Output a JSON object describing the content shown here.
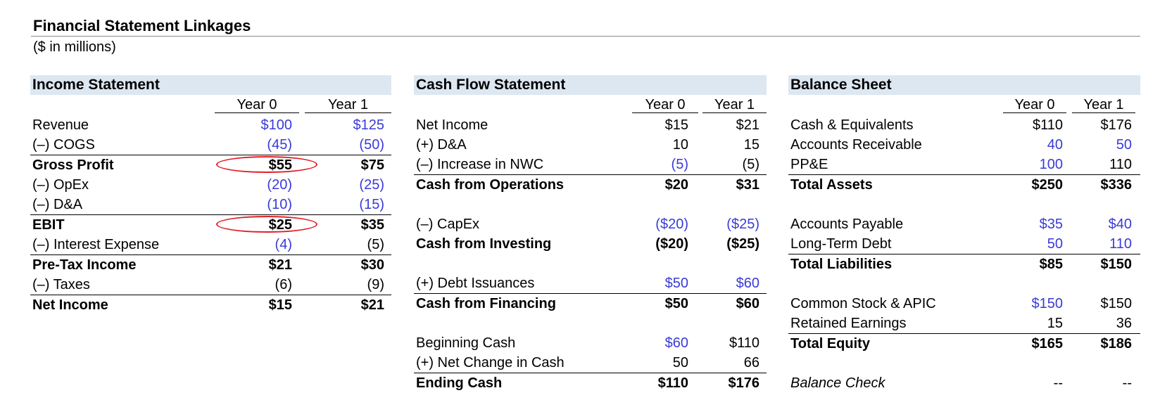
{
  "title": "Financial Statement Linkages",
  "subtitle": "($ in millions)",
  "colors": {
    "header_bg": "#dde7f2",
    "input_blue": "#3a3ad8",
    "highlight_red": "#e0202a"
  },
  "income_statement": {
    "title": "Income Statement",
    "year0": "Year 0",
    "year1": "Year 1",
    "rows": [
      {
        "label": "Revenue",
        "y0": "$100",
        "y1": "$125",
        "bold": false,
        "rule": false,
        "y0_blue": true,
        "y1_blue": true
      },
      {
        "label": "(–) COGS",
        "y0": "(45)",
        "y1": "(50)",
        "bold": false,
        "rule": false,
        "y0_blue": true,
        "y1_blue": true
      },
      {
        "label": "Gross Profit",
        "y0": "$55",
        "y1": "$75",
        "bold": true,
        "rule": true,
        "y0_blue": false,
        "y1_blue": false,
        "circled": true
      },
      {
        "label": "(–) OpEx",
        "y0": "(20)",
        "y1": "(25)",
        "bold": false,
        "rule": false,
        "y0_blue": true,
        "y1_blue": true
      },
      {
        "label": "(–) D&A",
        "y0": "(10)",
        "y1": "(15)",
        "bold": false,
        "rule": false,
        "y0_blue": true,
        "y1_blue": true
      },
      {
        "label": "EBIT",
        "y0": "$25",
        "y1": "$35",
        "bold": true,
        "rule": true,
        "y0_blue": false,
        "y1_blue": false,
        "circled": true
      },
      {
        "label": "(–) Interest Expense",
        "y0": "(4)",
        "y1": "(5)",
        "bold": false,
        "rule": false,
        "y0_blue": true,
        "y1_blue": false
      },
      {
        "label": "Pre-Tax Income",
        "y0": "$21",
        "y1": "$30",
        "bold": true,
        "rule": true,
        "y0_blue": false,
        "y1_blue": false
      },
      {
        "label": "(–) Taxes",
        "y0": "(6)",
        "y1": "(9)",
        "bold": false,
        "rule": false,
        "y0_blue": false,
        "y1_blue": false
      },
      {
        "label": "Net Income",
        "y0": "$15",
        "y1": "$21",
        "bold": true,
        "rule": true,
        "y0_blue": false,
        "y1_blue": false
      }
    ]
  },
  "cash_flow_statement": {
    "title": "Cash Flow Statement",
    "year0": "Year 0",
    "year1": "Year 1",
    "rows": [
      {
        "label": "Net Income",
        "y0": "$15",
        "y1": "$21",
        "bold": false,
        "rule": false,
        "y0_blue": false,
        "y1_blue": false
      },
      {
        "label": "(+) D&A",
        "y0": "10",
        "y1": "15",
        "bold": false,
        "rule": false,
        "y0_blue": false,
        "y1_blue": false
      },
      {
        "label": "(–) Increase in NWC",
        "y0": "(5)",
        "y1": "(5)",
        "bold": false,
        "rule": false,
        "y0_blue": true,
        "y1_blue": false
      },
      {
        "label": "Cash from Operations",
        "y0": "$20",
        "y1": "$31",
        "bold": true,
        "rule": true,
        "y0_blue": false,
        "y1_blue": false
      },
      {
        "label": "",
        "y0": "",
        "y1": "",
        "bold": false,
        "rule": false
      },
      {
        "label": "(–) CapEx",
        "y0": "($20)",
        "y1": "($25)",
        "bold": false,
        "rule": false,
        "y0_blue": true,
        "y1_blue": true
      },
      {
        "label": "Cash from Investing",
        "y0": "($20)",
        "y1": "($25)",
        "bold": true,
        "rule": false,
        "y0_blue": false,
        "y1_blue": false
      },
      {
        "label": "",
        "y0": "",
        "y1": "",
        "bold": false,
        "rule": false
      },
      {
        "label": "(+) Debt Issuances",
        "y0": "$50",
        "y1": "$60",
        "bold": false,
        "rule": false,
        "y0_blue": true,
        "y1_blue": true
      },
      {
        "label": "Cash from Financing",
        "y0": "$50",
        "y1": "$60",
        "bold": true,
        "rule": true,
        "y0_blue": false,
        "y1_blue": false
      },
      {
        "label": "",
        "y0": "",
        "y1": "",
        "bold": false,
        "rule": false
      },
      {
        "label": "Beginning Cash",
        "y0": "$60",
        "y1": "$110",
        "bold": false,
        "rule": false,
        "y0_blue": true,
        "y1_blue": false
      },
      {
        "label": "(+) Net Change in Cash",
        "y0": "50",
        "y1": "66",
        "bold": false,
        "rule": false,
        "y0_blue": false,
        "y1_blue": false
      },
      {
        "label": "Ending Cash",
        "y0": "$110",
        "y1": "$176",
        "bold": true,
        "rule": true,
        "y0_blue": false,
        "y1_blue": false
      }
    ]
  },
  "balance_sheet": {
    "title": "Balance Sheet",
    "year0": "Year 0",
    "year1": "Year 1",
    "rows": [
      {
        "label": "Cash & Equivalents",
        "y0": "$110",
        "y1": "$176",
        "bold": false,
        "rule": false,
        "y0_blue": false,
        "y1_blue": false
      },
      {
        "label": "Accounts Receivable",
        "y0": "40",
        "y1": "50",
        "bold": false,
        "rule": false,
        "y0_blue": true,
        "y1_blue": true
      },
      {
        "label": "PP&E",
        "y0": "100",
        "y1": "110",
        "bold": false,
        "rule": false,
        "y0_blue": true,
        "y1_blue": false
      },
      {
        "label": "Total Assets",
        "y0": "$250",
        "y1": "$336",
        "bold": true,
        "rule": true,
        "y0_blue": false,
        "y1_blue": false
      },
      {
        "label": "",
        "y0": "",
        "y1": "",
        "bold": false,
        "rule": false
      },
      {
        "label": "Accounts Payable",
        "y0": "$35",
        "y1": "$40",
        "bold": false,
        "rule": false,
        "y0_blue": true,
        "y1_blue": true
      },
      {
        "label": "Long-Term Debt",
        "y0": "50",
        "y1": "110",
        "bold": false,
        "rule": false,
        "y0_blue": true,
        "y1_blue": true
      },
      {
        "label": "Total Liabilities",
        "y0": "$85",
        "y1": "$150",
        "bold": true,
        "rule": true,
        "y0_blue": false,
        "y1_blue": false
      },
      {
        "label": "",
        "y0": "",
        "y1": "",
        "bold": false,
        "rule": false
      },
      {
        "label": "Common Stock & APIC",
        "y0": "$150",
        "y1": "$150",
        "bold": false,
        "rule": false,
        "y0_blue": true,
        "y1_blue": false
      },
      {
        "label": "Retained Earnings",
        "y0": "15",
        "y1": "36",
        "bold": false,
        "rule": false,
        "y0_blue": false,
        "y1_blue": false
      },
      {
        "label": "Total Equity",
        "y0": "$165",
        "y1": "$186",
        "bold": true,
        "rule": true,
        "y0_blue": false,
        "y1_blue": false
      },
      {
        "label": "",
        "y0": "",
        "y1": "",
        "bold": false,
        "rule": false
      },
      {
        "label": "Balance Check",
        "y0": "--",
        "y1": "--",
        "bold": false,
        "rule": false,
        "italic": true,
        "y0_blue": false,
        "y1_blue": false
      }
    ]
  }
}
